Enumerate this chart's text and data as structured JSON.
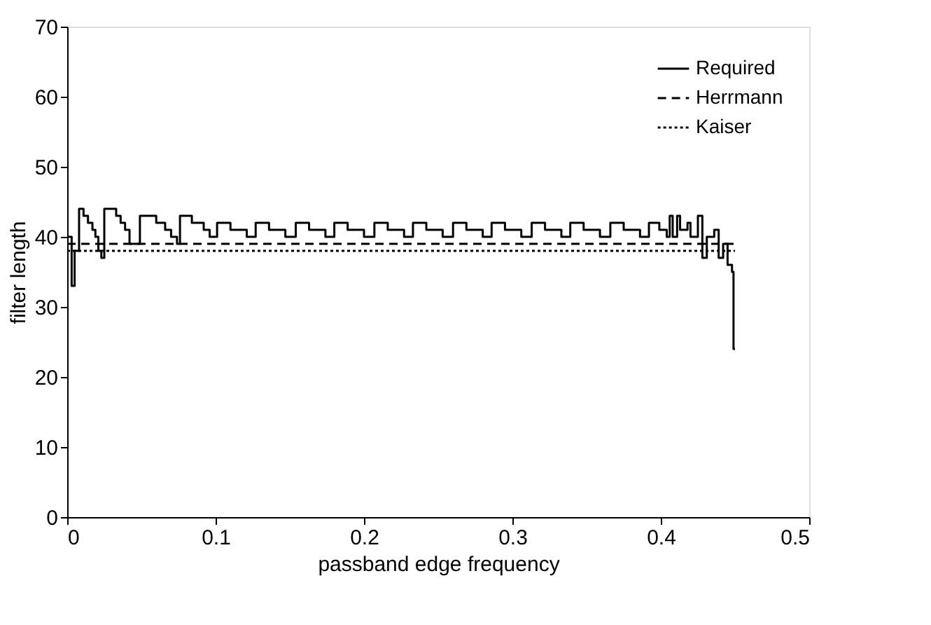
{
  "chart_data": {
    "type": "line",
    "xlabel": "passband edge frequency",
    "ylabel": "filter length",
    "xlim": [
      0,
      0.5
    ],
    "xticks": [
      0,
      0.1,
      0.2,
      0.3,
      0.4,
      0.5
    ],
    "ylim": [
      0,
      70
    ],
    "yticks": [
      0,
      10,
      20,
      30,
      40,
      50,
      60,
      70
    ],
    "grid": false,
    "legend": "top right",
    "marker": "none",
    "series": [
      {
        "name": "Required",
        "type": "step",
        "color": "#000000",
        "line_style": "solid",
        "x": [
          0,
          0.003,
          0.005,
          0.008,
          0.011,
          0.014,
          0.017,
          0.019,
          0.021,
          0.023,
          0.025,
          0.033,
          0.036,
          0.039,
          0.042,
          0.049,
          0.06,
          0.066,
          0.07,
          0.074,
          0.076,
          0.084,
          0.092,
          0.096,
          0.101,
          0.11,
          0.121,
          0.127,
          0.136,
          0.147,
          0.154,
          0.163,
          0.174,
          0.18,
          0.189,
          0.2,
          0.207,
          0.216,
          0.227,
          0.233,
          0.242,
          0.253,
          0.26,
          0.269,
          0.28,
          0.286,
          0.295,
          0.306,
          0.313,
          0.322,
          0.333,
          0.339,
          0.348,
          0.359,
          0.366,
          0.375,
          0.386,
          0.392,
          0.399,
          0.404,
          0.406,
          0.408,
          0.411,
          0.413,
          0.418,
          0.42,
          0.425,
          0.428,
          0.431,
          0.436,
          0.439,
          0.442,
          0.445,
          0.448,
          0.449,
          0.45
        ],
        "values": [
          40,
          33,
          38,
          44,
          43,
          42,
          41,
          40,
          38,
          37,
          44,
          43,
          42,
          41,
          39,
          43,
          42,
          41,
          40,
          39,
          43,
          42,
          41,
          40,
          42,
          41,
          40,
          42,
          41,
          40,
          42,
          41,
          40,
          42,
          41,
          40,
          42,
          41,
          40,
          42,
          41,
          40,
          42,
          41,
          40,
          42,
          41,
          40,
          42,
          41,
          40,
          42,
          41,
          40,
          42,
          41,
          40,
          42,
          41,
          40,
          43,
          40,
          43,
          41,
          42,
          40,
          43,
          37,
          40,
          41,
          37,
          39,
          36,
          35,
          24,
          24
        ]
      },
      {
        "name": "Herrmann",
        "color": "#000000",
        "line_style": "dashed",
        "x": [
          0,
          0.45
        ],
        "values": [
          39,
          39
        ]
      },
      {
        "name": "Kaiser",
        "color": "#000000",
        "line_style": "dotted",
        "x": [
          0,
          0.45
        ],
        "values": [
          38,
          38
        ]
      }
    ]
  }
}
